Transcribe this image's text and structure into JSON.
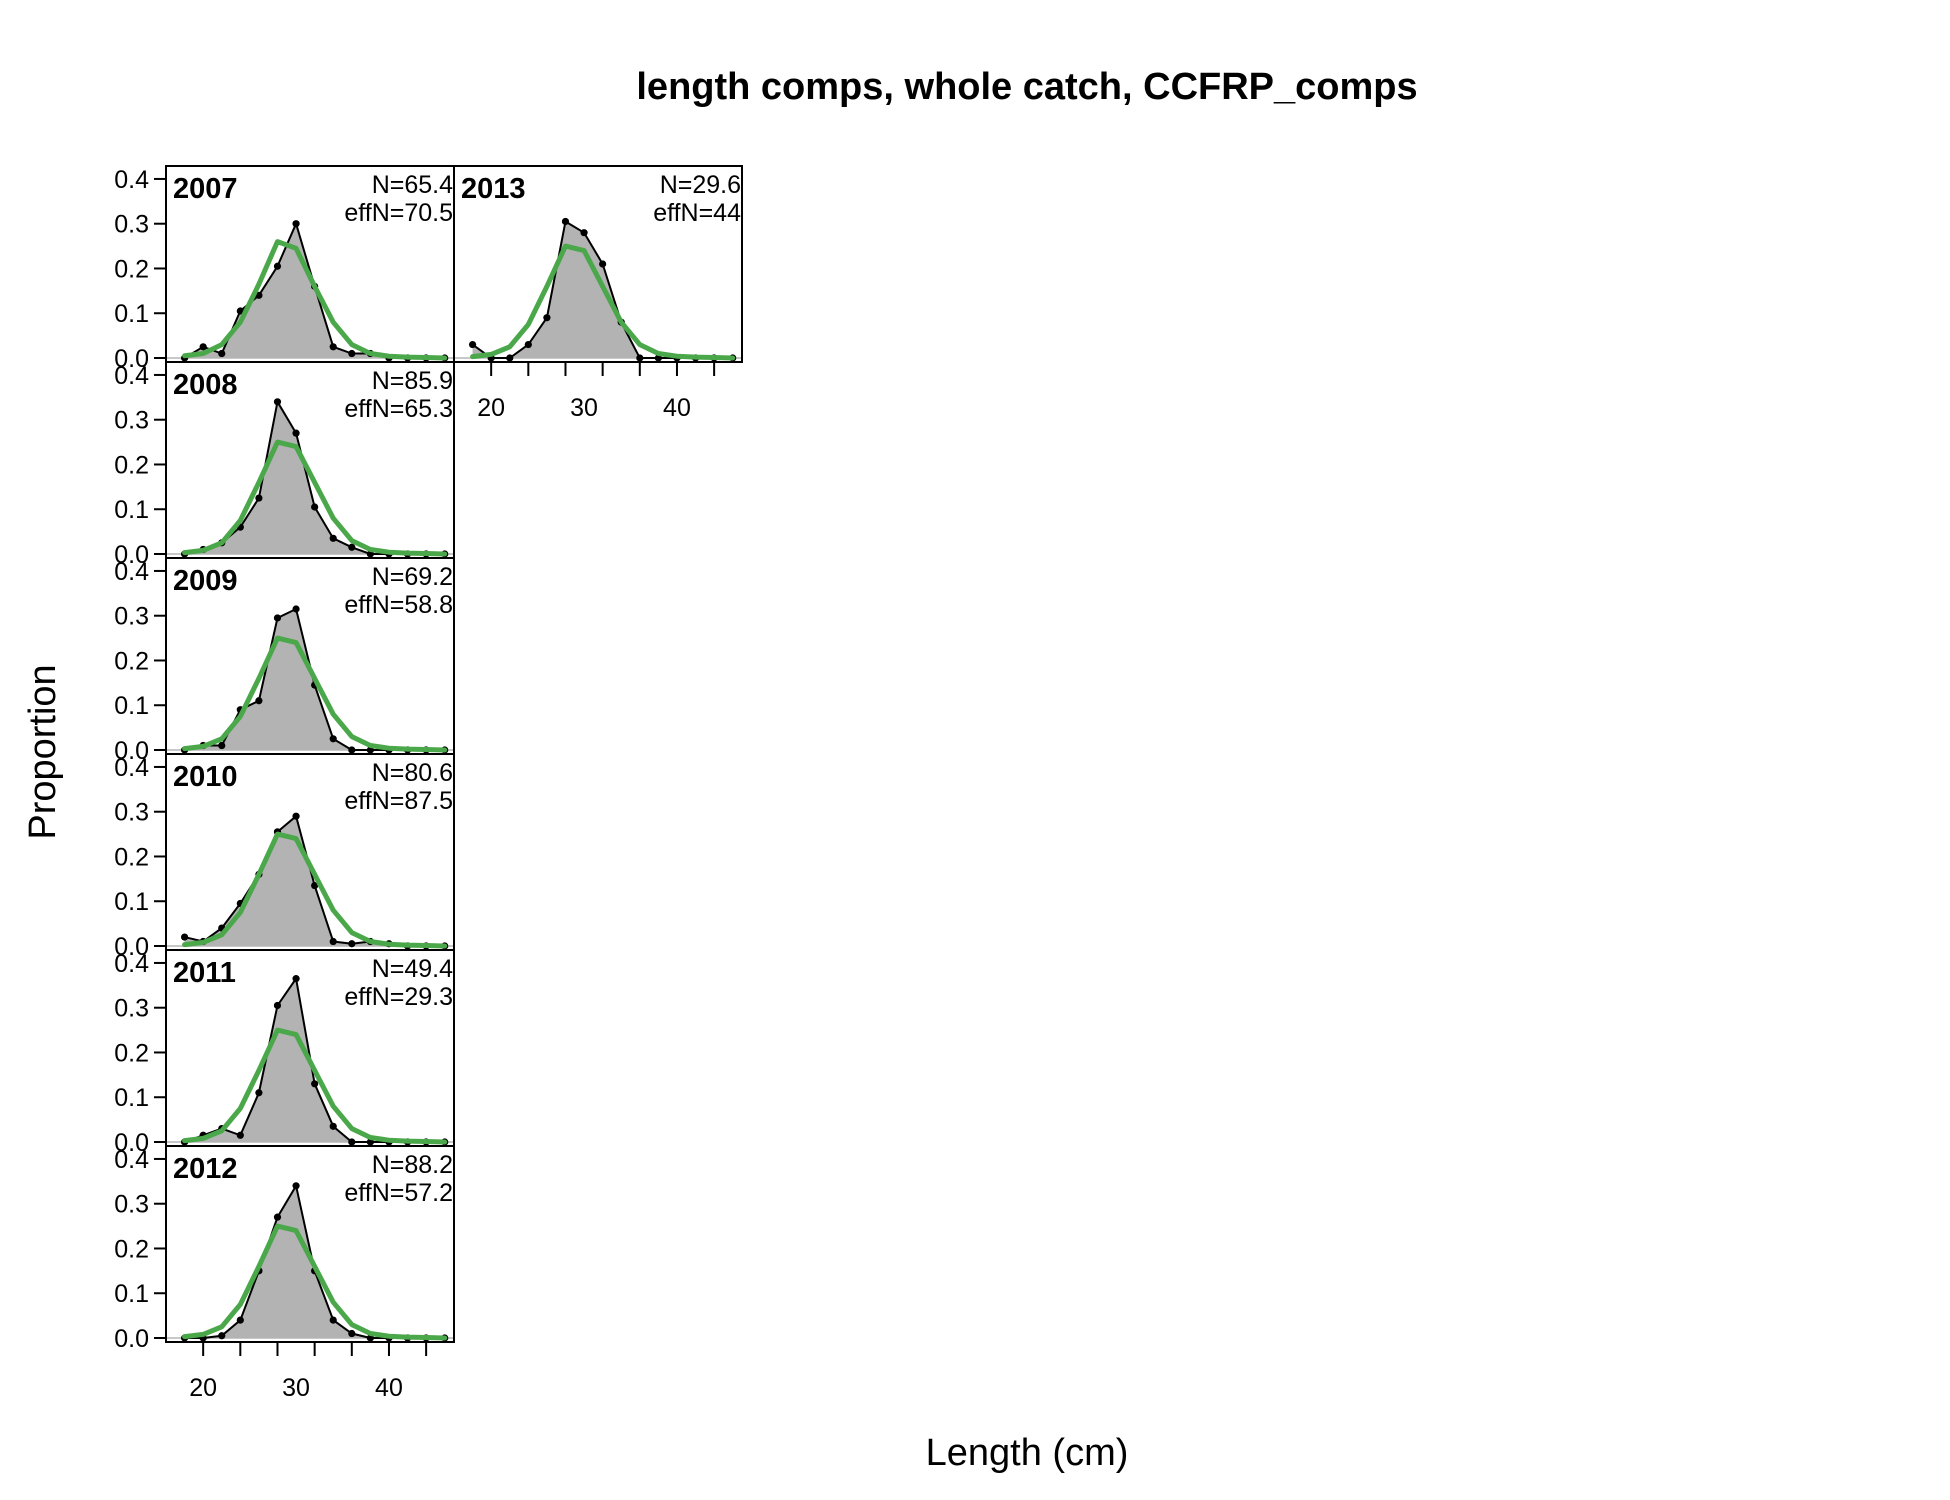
{
  "chart_data": {
    "type": "area",
    "title": "length comps, whole catch, CCFRP_comps",
    "xlabel": "Length (cm)",
    "ylabel": "Proportion",
    "xlim": [
      16,
      47
    ],
    "ylim": [
      0,
      0.42
    ],
    "x_ticks": [
      20,
      30,
      40
    ],
    "y_ticks": [
      0.0,
      0.1,
      0.2,
      0.3,
      0.4
    ],
    "y_tick_labels": [
      "0.0",
      "0.1",
      "0.2",
      "0.3",
      "0.4"
    ],
    "x": [
      18,
      20,
      22,
      24,
      26,
      28,
      30,
      32,
      34,
      36,
      38,
      40,
      42,
      44,
      46
    ],
    "colors": {
      "observed_fill": "#b3b3b3",
      "observed_line": "#000000",
      "expected_line": "#4aa84a"
    },
    "panels": [
      {
        "year": "2007",
        "n_label": "N=65.4",
        "effn_label": "effN=70.5",
        "observed": [
          0.0,
          0.025,
          0.01,
          0.105,
          0.14,
          0.205,
          0.3,
          0.16,
          0.025,
          0.01,
          0.01,
          0.0,
          0.0,
          0.0,
          0.0
        ],
        "expected": [
          0.005,
          0.01,
          0.03,
          0.08,
          0.165,
          0.26,
          0.245,
          0.16,
          0.08,
          0.03,
          0.01,
          0.004,
          0.002,
          0.001,
          0.0
        ]
      },
      {
        "year": "2008",
        "n_label": "N=85.9",
        "effn_label": "effN=65.3",
        "observed": [
          0.0,
          0.01,
          0.025,
          0.06,
          0.125,
          0.34,
          0.27,
          0.105,
          0.035,
          0.015,
          0.0,
          0.0,
          0.0,
          0.0,
          0.0
        ],
        "expected": [
          0.003,
          0.008,
          0.025,
          0.075,
          0.16,
          0.25,
          0.24,
          0.16,
          0.08,
          0.03,
          0.01,
          0.004,
          0.002,
          0.001,
          0.0
        ]
      },
      {
        "year": "2009",
        "n_label": "N=69.2",
        "effn_label": "effN=58.8",
        "observed": [
          0.0,
          0.01,
          0.01,
          0.09,
          0.11,
          0.295,
          0.315,
          0.145,
          0.025,
          0.0,
          0.0,
          0.0,
          0.0,
          0.0,
          0.0
        ],
        "expected": [
          0.003,
          0.008,
          0.025,
          0.075,
          0.16,
          0.25,
          0.24,
          0.16,
          0.08,
          0.03,
          0.01,
          0.004,
          0.002,
          0.001,
          0.0
        ]
      },
      {
        "year": "2010",
        "n_label": "N=80.6",
        "effn_label": "effN=87.5",
        "observed": [
          0.02,
          0.01,
          0.04,
          0.095,
          0.16,
          0.255,
          0.29,
          0.135,
          0.01,
          0.005,
          0.01,
          0.005,
          0.0,
          0.0,
          0.0
        ],
        "expected": [
          0.003,
          0.008,
          0.025,
          0.075,
          0.16,
          0.25,
          0.24,
          0.16,
          0.08,
          0.03,
          0.01,
          0.004,
          0.002,
          0.001,
          0.0
        ]
      },
      {
        "year": "2011",
        "n_label": "N=49.4",
        "effn_label": "effN=29.3",
        "observed": [
          0.0,
          0.015,
          0.03,
          0.015,
          0.11,
          0.305,
          0.365,
          0.13,
          0.035,
          0.0,
          0.0,
          0.0,
          0.0,
          0.0,
          0.0
        ],
        "expected": [
          0.003,
          0.008,
          0.025,
          0.075,
          0.16,
          0.25,
          0.24,
          0.16,
          0.08,
          0.03,
          0.01,
          0.004,
          0.002,
          0.001,
          0.0
        ]
      },
      {
        "year": "2012",
        "n_label": "N=88.2",
        "effn_label": "effN=57.2",
        "observed": [
          0.0,
          0.0,
          0.005,
          0.04,
          0.15,
          0.27,
          0.34,
          0.15,
          0.04,
          0.01,
          0.0,
          0.0,
          0.0,
          0.0,
          0.0
        ],
        "expected": [
          0.003,
          0.008,
          0.025,
          0.075,
          0.16,
          0.25,
          0.24,
          0.16,
          0.08,
          0.03,
          0.01,
          0.004,
          0.002,
          0.001,
          0.0
        ]
      },
      {
        "year": "2013",
        "n_label": "N=29.6",
        "effn_label": "effN=44",
        "observed": [
          0.03,
          0.0,
          0.0,
          0.03,
          0.09,
          0.305,
          0.28,
          0.21,
          0.08,
          0.0,
          0.0,
          0.0,
          0.0,
          0.0,
          0.0
        ],
        "expected": [
          0.003,
          0.008,
          0.025,
          0.075,
          0.16,
          0.25,
          0.24,
          0.16,
          0.08,
          0.03,
          0.01,
          0.004,
          0.002,
          0.001,
          0.0
        ]
      }
    ]
  }
}
